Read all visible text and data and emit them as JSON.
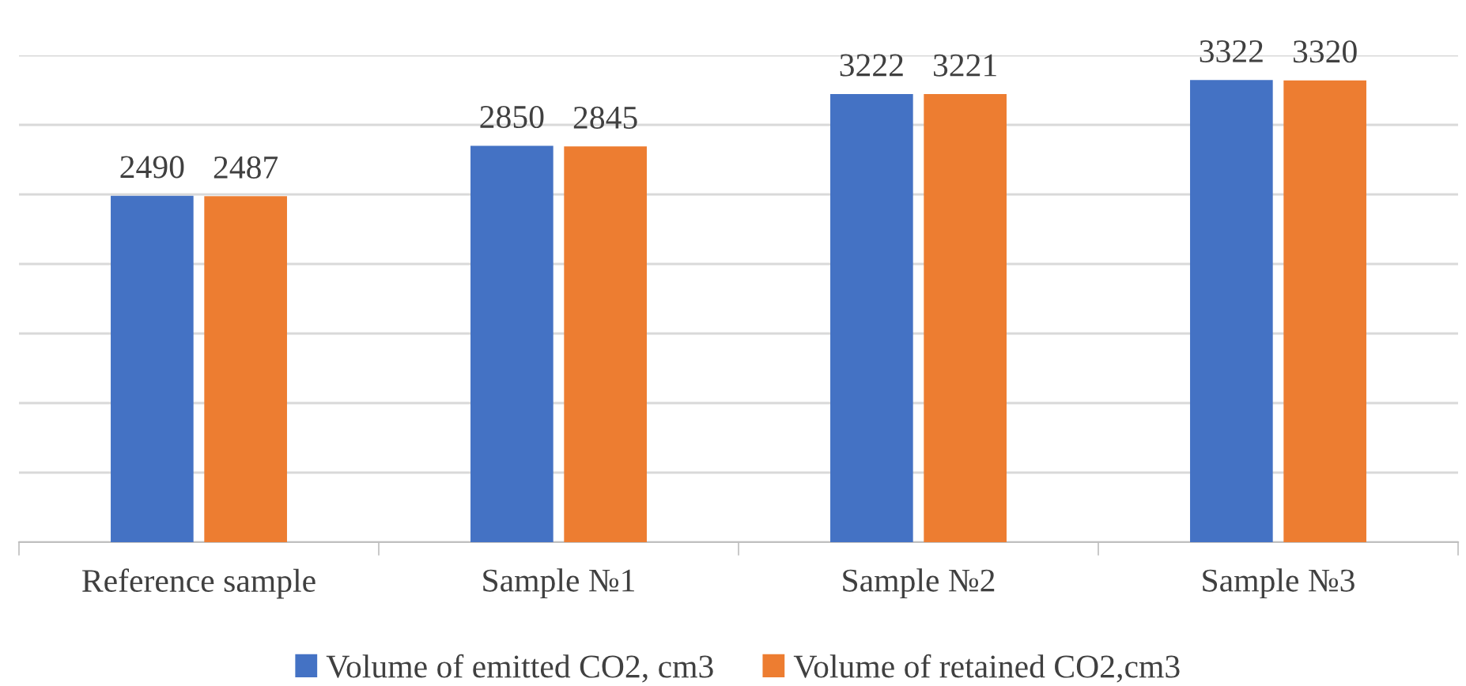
{
  "chart_data": {
    "type": "bar",
    "categories": [
      "Reference sample",
      "Sample №1",
      "Sample №2",
      "Sample №3"
    ],
    "series": [
      {
        "name": "Volume of emitted CO2, cm3",
        "color": "#4472c4",
        "values": [
          2490,
          2850,
          3222,
          3322
        ]
      },
      {
        "name": "Volume of retained CO2,cm3",
        "color": "#ed7d31",
        "values": [
          2487,
          2845,
          3221,
          3320
        ]
      }
    ],
    "ylim": [
      0,
      3500
    ],
    "yticks": [
      {
        "value": 0,
        "label": null
      },
      {
        "value": 500,
        "label": null
      },
      {
        "value": 1000,
        "label": null
      },
      {
        "value": 1500,
        "label": null
      },
      {
        "value": 2000,
        "label": null
      },
      {
        "value": 2500,
        "label": null
      },
      {
        "value": 3000,
        "label": null
      },
      {
        "value": 3500,
        "label": null
      }
    ],
    "grid": "y",
    "legend": "bottom",
    "data_labels": true,
    "tick_labels": "x"
  }
}
